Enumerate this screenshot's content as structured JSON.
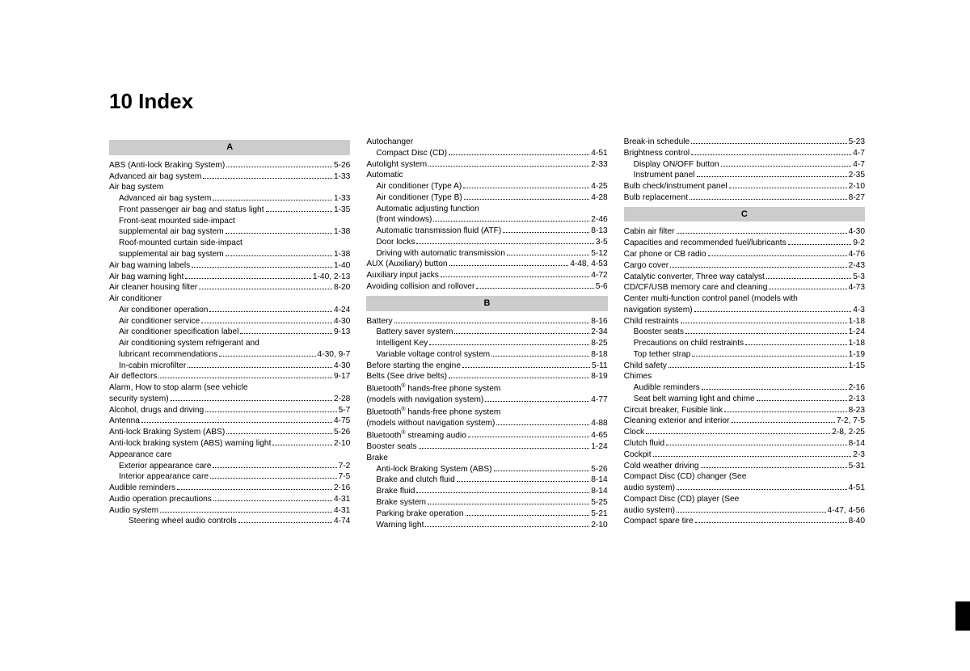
{
  "title": "10 Index",
  "columns": [
    {
      "sections": [
        {
          "header": "A",
          "entries": [
            {
              "label": "ABS (Anti-lock Braking System)",
              "page": "5-26",
              "indent": 0
            },
            {
              "label": "Advanced air bag system",
              "page": "1-33",
              "indent": 0
            },
            {
              "label": "Air bag system",
              "page": "",
              "indent": 0,
              "noline": true
            },
            {
              "label": "Advanced air bag system",
              "page": "1-33",
              "indent": 1
            },
            {
              "label": "Front passenger air bag and status light",
              "page": "1-35",
              "indent": 1
            },
            {
              "label": "Front-seat mounted side-impact",
              "page": "",
              "indent": 1,
              "noline": true
            },
            {
              "label": "supplemental air bag system",
              "page": "1-38",
              "indent": 1
            },
            {
              "label": "Roof-mounted curtain side-impact",
              "page": "",
              "indent": 1,
              "noline": true
            },
            {
              "label": "supplemental air bag system",
              "page": "1-38",
              "indent": 1
            },
            {
              "label": "Air bag warning labels",
              "page": "1-40",
              "indent": 0
            },
            {
              "label": "Air bag warning light",
              "page": "1-40, 2-13",
              "indent": 0
            },
            {
              "label": "Air cleaner housing filter",
              "page": "8-20",
              "indent": 0
            },
            {
              "label": "Air conditioner",
              "page": "",
              "indent": 0,
              "noline": true
            },
            {
              "label": "Air conditioner operation",
              "page": "4-24",
              "indent": 1
            },
            {
              "label": "Air conditioner service",
              "page": "4-30",
              "indent": 1
            },
            {
              "label": "Air conditioner specification label",
              "page": "9-13",
              "indent": 1
            },
            {
              "label": "Air conditioning system refrigerant and",
              "page": "",
              "indent": 1,
              "noline": true
            },
            {
              "label": "lubricant recommendations",
              "page": "4-30, 9-7",
              "indent": 1
            },
            {
              "label": "In-cabin microfilter",
              "page": "4-30",
              "indent": 1
            },
            {
              "label": "Air deflectors",
              "page": "9-17",
              "indent": 0
            },
            {
              "label": "Alarm, How to stop alarm (see vehicle",
              "page": "",
              "indent": 0,
              "noline": true
            },
            {
              "label": "security system)",
              "page": "2-28",
              "indent": 0
            },
            {
              "label": "Alcohol, drugs and driving",
              "page": "5-7",
              "indent": 0
            },
            {
              "label": "Antenna",
              "page": "4-75",
              "indent": 0
            },
            {
              "label": "Anti-lock Braking System (ABS)",
              "page": "5-26",
              "indent": 0
            },
            {
              "label": "Anti-lock braking system (ABS) warning light",
              "page": "2-10",
              "indent": 0
            },
            {
              "label": "Appearance care",
              "page": "",
              "indent": 0,
              "noline": true
            },
            {
              "label": "Exterior appearance care",
              "page": "7-2",
              "indent": 1
            },
            {
              "label": "Interior appearance care",
              "page": "7-5",
              "indent": 1
            },
            {
              "label": "Audible reminders",
              "page": "2-16",
              "indent": 0
            },
            {
              "label": "Audio operation precautions",
              "page": "4-31",
              "indent": 0
            },
            {
              "label": "Audio system",
              "page": "4-31",
              "indent": 0
            },
            {
              "label": "Steering wheel audio controls",
              "page": "4-74",
              "indent": 2
            }
          ]
        }
      ]
    },
    {
      "sections": [
        {
          "header": null,
          "entries": [
            {
              "label": "Autochanger",
              "page": "",
              "indent": 0,
              "noline": true
            },
            {
              "label": "Compact Disc (CD)",
              "page": "4-51",
              "indent": 1
            },
            {
              "label": "Autolight system",
              "page": "2-33",
              "indent": 0
            },
            {
              "label": "Automatic",
              "page": "",
              "indent": 0,
              "noline": true
            },
            {
              "label": "Air conditioner (Type A)",
              "page": "4-25",
              "indent": 1
            },
            {
              "label": "Air conditioner (Type B)",
              "page": "4-28",
              "indent": 1
            },
            {
              "label": "Automatic adjusting function",
              "page": "",
              "indent": 1,
              "noline": true
            },
            {
              "label": "(front windows)",
              "page": "2-46",
              "indent": 1
            },
            {
              "label": "Automatic transmission fluid (ATF)",
              "page": "8-13",
              "indent": 1
            },
            {
              "label": "Door locks",
              "page": "3-5",
              "indent": 1
            },
            {
              "label": "Driving with automatic transmission",
              "page": "5-12",
              "indent": 1
            },
            {
              "label": "AUX (Auxiliary) button",
              "page": "4-48, 4-53",
              "indent": 0
            },
            {
              "label": "Auxiliary input jacks",
              "page": "4-72",
              "indent": 0
            },
            {
              "label": "Avoiding collision and rollover",
              "page": "5-6",
              "indent": 0
            }
          ]
        },
        {
          "header": "B",
          "entries": [
            {
              "label": "Battery",
              "page": "8-16",
              "indent": 0
            },
            {
              "label": "Battery saver system",
              "page": "2-34",
              "indent": 1
            },
            {
              "label": "Intelligent Key",
              "page": "8-25",
              "indent": 1
            },
            {
              "label": "Variable voltage control system",
              "page": "8-18",
              "indent": 1
            },
            {
              "label": "Before starting the engine",
              "page": "5-11",
              "indent": 0
            },
            {
              "label": "Belts (See drive belts)",
              "page": "8-19",
              "indent": 0
            },
            {
              "label": "Bluetooth® hands-free phone system",
              "page": "",
              "indent": 0,
              "noline": true,
              "html": "Bluetooth<sup>®</sup> hands-free phone system"
            },
            {
              "label": "(models with navigation system)",
              "page": "4-77",
              "indent": 0
            },
            {
              "label": "Bluetooth® hands-free phone system",
              "page": "",
              "indent": 0,
              "noline": true,
              "html": "Bluetooth<sup>®</sup> hands-free phone system"
            },
            {
              "label": "(models without navigation system)",
              "page": "4-88",
              "indent": 0
            },
            {
              "label": "Bluetooth® streaming audio",
              "page": "4-65",
              "indent": 0,
              "html": "Bluetooth<sup>®</sup> streaming audio"
            },
            {
              "label": "Booster seats",
              "page": "1-24",
              "indent": 0
            },
            {
              "label": "Brake",
              "page": "",
              "indent": 0,
              "noline": true
            },
            {
              "label": "Anti-lock Braking System (ABS)",
              "page": "5-26",
              "indent": 1
            },
            {
              "label": "Brake and clutch fluid",
              "page": "8-14",
              "indent": 1
            },
            {
              "label": "Brake fluid",
              "page": "8-14",
              "indent": 1
            },
            {
              "label": "Brake system",
              "page": "5-25",
              "indent": 1
            },
            {
              "label": "Parking brake operation",
              "page": "5-21",
              "indent": 1
            },
            {
              "label": "Warning light",
              "page": "2-10",
              "indent": 1
            }
          ]
        }
      ]
    },
    {
      "sections": [
        {
          "header": null,
          "entries": [
            {
              "label": "Break-in schedule",
              "page": "5-23",
              "indent": 0
            },
            {
              "label": "Brightness control",
              "page": "4-7",
              "indent": 0
            },
            {
              "label": "Display ON/OFF button",
              "page": "4-7",
              "indent": 1
            },
            {
              "label": "Instrument panel",
              "page": "2-35",
              "indent": 1
            },
            {
              "label": "Bulb check/instrument panel",
              "page": "2-10",
              "indent": 0
            },
            {
              "label": "Bulb replacement",
              "page": "8-27",
              "indent": 0
            }
          ]
        },
        {
          "header": "C",
          "entries": [
            {
              "label": "Cabin air filter",
              "page": "4-30",
              "indent": 0
            },
            {
              "label": "Capacities and recommended fuel/lubricants",
              "page": "9-2",
              "indent": 0
            },
            {
              "label": "Car phone or CB radio",
              "page": "4-76",
              "indent": 0
            },
            {
              "label": "Cargo cover",
              "page": "2-43",
              "indent": 0
            },
            {
              "label": "Catalytic converter, Three way catalyst",
              "page": "5-3",
              "indent": 0
            },
            {
              "label": "CD/CF/USB memory care and cleaning",
              "page": "4-73",
              "indent": 0
            },
            {
              "label": "Center multi-function control panel (models with",
              "page": "",
              "indent": 0,
              "noline": true
            },
            {
              "label": "navigation system)",
              "page": "4-3",
              "indent": 0
            },
            {
              "label": "Child restraints",
              "page": "1-18",
              "indent": 0
            },
            {
              "label": "Booster seats",
              "page": "1-24",
              "indent": 1
            },
            {
              "label": "Precautions on child restraints",
              "page": "1-18",
              "indent": 1
            },
            {
              "label": "Top tether strap",
              "page": "1-19",
              "indent": 1
            },
            {
              "label": "Child safety",
              "page": "1-15",
              "indent": 0
            },
            {
              "label": "Chimes",
              "page": "",
              "indent": 0,
              "noline": true
            },
            {
              "label": "Audible reminders",
              "page": "2-16",
              "indent": 1
            },
            {
              "label": "Seat belt warning light and chime",
              "page": "2-13",
              "indent": 1
            },
            {
              "label": "Circuit breaker, Fusible link",
              "page": "8-23",
              "indent": 0
            },
            {
              "label": "Cleaning exterior and interior",
              "page": "7-2, 7-5",
              "indent": 0
            },
            {
              "label": "Clock",
              "page": "2-8, 2-25",
              "indent": 0
            },
            {
              "label": "Clutch fluid",
              "page": "8-14",
              "indent": 0
            },
            {
              "label": "Cockpit",
              "page": "2-3",
              "indent": 0
            },
            {
              "label": "Cold weather driving",
              "page": "5-31",
              "indent": 0
            },
            {
              "label": "Compact Disc (CD) changer (See",
              "page": "",
              "indent": 0,
              "noline": true
            },
            {
              "label": "audio system)",
              "page": "4-51",
              "indent": 0
            },
            {
              "label": "Compact Disc (CD) player (See",
              "page": "",
              "indent": 0,
              "noline": true
            },
            {
              "label": "audio system)",
              "page": "4-47, 4-56",
              "indent": 0
            },
            {
              "label": "Compact spare tire",
              "page": "8-40",
              "indent": 0
            }
          ]
        }
      ]
    }
  ]
}
